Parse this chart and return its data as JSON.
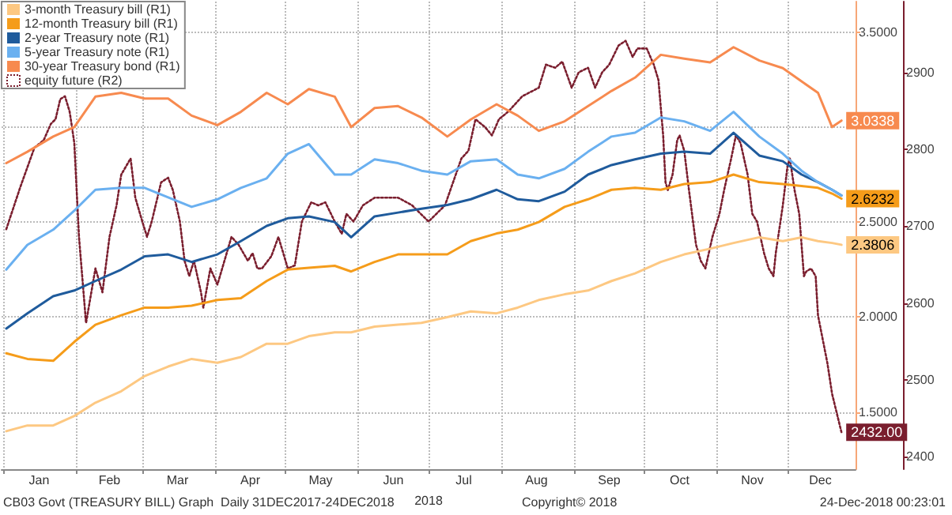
{
  "chart_data": {
    "type": "line",
    "xlabel": "2018",
    "legend": "top left",
    "grid": true,
    "marker": "none",
    "annotations": [
      "CB03 Govt (TREASURY BILL) Graph  Daily 31DEC2017-24DEC2018",
      "Copyright© 2018",
      "24-Dec-2018 00:23:01"
    ],
    "xlim": [
      "2017-12-31",
      "2018-12-30"
    ],
    "xticks": [
      {
        "value": "2018-01-01",
        "label": null
      },
      {
        "value": "2018-01-16",
        "label": "Jan"
      },
      {
        "value": "2018-02-01",
        "label": null
      },
      {
        "value": "2018-02-15",
        "label": "Feb"
      },
      {
        "value": "2018-03-01",
        "label": null
      },
      {
        "value": "2018-03-16",
        "label": "Mar"
      },
      {
        "value": "2018-04-01",
        "label": null
      },
      {
        "value": "2018-04-16",
        "label": "Apr"
      },
      {
        "value": "2018-05-01",
        "label": null
      },
      {
        "value": "2018-05-16",
        "label": "May"
      },
      {
        "value": "2018-06-01",
        "label": null
      },
      {
        "value": "2018-06-16",
        "label": "Jun"
      },
      {
        "value": "2018-07-01",
        "label": null
      },
      {
        "value": "2018-07-16",
        "label": "Jul"
      },
      {
        "value": "2018-08-01",
        "label": null
      },
      {
        "value": "2018-08-16",
        "label": "Aug"
      },
      {
        "value": "2018-09-01",
        "label": null
      },
      {
        "value": "2018-09-16",
        "label": "Sep"
      },
      {
        "value": "2018-10-01",
        "label": null
      },
      {
        "value": "2018-10-16",
        "label": "Oct"
      },
      {
        "value": "2018-11-01",
        "label": null
      },
      {
        "value": "2018-11-16",
        "label": "Nov"
      },
      {
        "value": "2018-12-01",
        "label": null
      },
      {
        "value": "2018-12-15",
        "label": "Dec"
      }
    ],
    "ylim": [
      1.2,
      3.66
    ],
    "yticks": [
      {
        "value": 1.5,
        "label": "1.5000"
      },
      {
        "value": 2,
        "label": "2.0000"
      },
      {
        "value": 2.5,
        "label": "2.5000"
      },
      {
        "value": 3,
        "label": null
      },
      {
        "value": 3.5,
        "label": "3.5000"
      }
    ],
    "y2lim": [
      2384,
      2992
    ],
    "y2ticks": [
      2400,
      2500,
      2600,
      2700,
      2800,
      2900
    ],
    "x": [
      "2018-01-02",
      "2018-01-11",
      "2018-01-22",
      "2018-01-31",
      "2018-02-09",
      "2018-02-20",
      "2018-03-02",
      "2018-03-12",
      "2018-03-22",
      "2018-04-02",
      "2018-04-12",
      "2018-04-23",
      "2018-05-02",
      "2018-05-11",
      "2018-05-22",
      "2018-05-29",
      "2018-06-08",
      "2018-06-18",
      "2018-06-28",
      "2018-07-09",
      "2018-07-19",
      "2018-07-30",
      "2018-08-08",
      "2018-08-17",
      "2018-08-28",
      "2018-09-07",
      "2018-09-17",
      "2018-09-27",
      "2018-10-08",
      "2018-10-18",
      "2018-10-29",
      "2018-11-08",
      "2018-11-19",
      "2018-11-29",
      "2018-12-07",
      "2018-12-14",
      "2018-12-20",
      "2018-12-24"
    ],
    "series": [
      {
        "name": "3-month Treasury bill (R1)",
        "color": "#fdc882",
        "values": [
          1.4,
          1.43,
          1.43,
          1.48,
          1.55,
          1.61,
          1.69,
          1.74,
          1.78,
          1.76,
          1.79,
          1.86,
          1.86,
          1.9,
          1.92,
          1.92,
          1.95,
          1.96,
          1.97,
          2.0,
          2.03,
          2.02,
          2.05,
          2.09,
          2.12,
          2.14,
          2.19,
          2.23,
          2.29,
          2.33,
          2.36,
          2.39,
          2.42,
          2.4,
          2.42,
          2.4,
          2.39,
          2.3806
        ],
        "value_labels": [
          null,
          null,
          null,
          null,
          null,
          null,
          null,
          null,
          null,
          null,
          null,
          null,
          null,
          null,
          null,
          null,
          null,
          null,
          null,
          null,
          null,
          null,
          null,
          null,
          null,
          null,
          null,
          null,
          null,
          null,
          null,
          null,
          null,
          null,
          null,
          null,
          null,
          "2.3806"
        ]
      },
      {
        "name": "12-month Treasury bill (R1)",
        "color": "#f59c1a",
        "values": [
          1.81,
          1.78,
          1.77,
          1.87,
          1.96,
          2.01,
          2.05,
          2.05,
          2.06,
          2.09,
          2.1,
          2.19,
          2.25,
          2.26,
          2.27,
          2.24,
          2.29,
          2.33,
          2.33,
          2.33,
          2.4,
          2.44,
          2.46,
          2.5,
          2.58,
          2.62,
          2.67,
          2.68,
          2.67,
          2.7,
          2.71,
          2.75,
          2.71,
          2.7,
          2.69,
          2.68,
          2.65,
          2.6232
        ],
        "value_labels": [
          null,
          null,
          null,
          null,
          null,
          null,
          null,
          null,
          null,
          null,
          null,
          null,
          null,
          null,
          null,
          null,
          null,
          null,
          null,
          null,
          null,
          null,
          null,
          null,
          null,
          null,
          null,
          null,
          null,
          null,
          null,
          null,
          null,
          null,
          null,
          null,
          null,
          "2.6232"
        ]
      },
      {
        "name": "2-year Treasury note (R1)",
        "color": "#1f5b9c",
        "values": [
          1.94,
          2.02,
          2.11,
          2.14,
          2.19,
          2.25,
          2.32,
          2.33,
          2.29,
          2.33,
          2.4,
          2.48,
          2.52,
          2.53,
          2.5,
          2.42,
          2.53,
          2.55,
          2.57,
          2.59,
          2.62,
          2.67,
          2.62,
          2.61,
          2.66,
          2.75,
          2.8,
          2.83,
          2.86,
          2.87,
          2.86,
          2.97,
          2.85,
          2.82,
          2.75,
          2.71,
          2.67,
          2.64
        ]
      },
      {
        "name": "5-year Treasury note (R1)",
        "color": "#6ab0f0",
        "values": [
          2.25,
          2.38,
          2.46,
          2.56,
          2.67,
          2.68,
          2.68,
          2.63,
          2.58,
          2.62,
          2.68,
          2.73,
          2.86,
          2.91,
          2.75,
          2.75,
          2.83,
          2.81,
          2.77,
          2.75,
          2.82,
          2.83,
          2.75,
          2.73,
          2.78,
          2.87,
          2.95,
          2.97,
          3.05,
          3.03,
          2.98,
          3.08,
          2.95,
          2.86,
          2.77,
          2.71,
          2.67,
          2.64
        ]
      },
      {
        "name": "30-year Treasury bond (R1)",
        "color": "#f78a4f",
        "values": [
          2.81,
          2.87,
          2.95,
          3.0,
          3.16,
          3.18,
          3.15,
          3.15,
          3.06,
          3.01,
          3.08,
          3.18,
          3.12,
          3.2,
          3.16,
          3.0,
          3.1,
          3.11,
          3.05,
          2.95,
          3.04,
          3.12,
          3.06,
          2.98,
          3.03,
          3.11,
          3.19,
          3.26,
          3.38,
          3.36,
          3.34,
          3.42,
          3.35,
          3.31,
          3.24,
          3.18,
          3.0,
          3.0338
        ],
        "value_labels": [
          null,
          null,
          null,
          null,
          null,
          null,
          null,
          null,
          null,
          null,
          null,
          null,
          null,
          null,
          null,
          null,
          null,
          null,
          null,
          null,
          null,
          null,
          null,
          null,
          null,
          null,
          null,
          null,
          null,
          null,
          null,
          null,
          null,
          null,
          null,
          null,
          null,
          "3.0338"
        ]
      },
      {
        "name": "equity future (R2)",
        "color": "#7a1e2e",
        "axis": "y2",
        "line_style": "dotted",
        "x": [
          "2018-01-02",
          "2018-01-08",
          "2018-01-14",
          "2018-01-18",
          "2018-01-21",
          "2018-01-23",
          "2018-01-25",
          "2018-01-27",
          "2018-01-29",
          "2018-01-30",
          "2018-01-31",
          "2018-02-02",
          "2018-02-05",
          "2018-02-09",
          "2018-02-12",
          "2018-02-15",
          "2018-02-18",
          "2018-02-20",
          "2018-02-24",
          "2018-02-26",
          "2018-03-01",
          "2018-03-03",
          "2018-03-05",
          "2018-03-09",
          "2018-03-12",
          "2018-03-14",
          "2018-03-17",
          "2018-03-19",
          "2018-03-21",
          "2018-03-23",
          "2018-03-26",
          "2018-03-27",
          "2018-03-30",
          "2018-04-02",
          "2018-04-05",
          "2018-04-08",
          "2018-04-11",
          "2018-04-15",
          "2018-04-17",
          "2018-04-19",
          "2018-04-21",
          "2018-04-25",
          "2018-04-28",
          "2018-05-02",
          "2018-05-05",
          "2018-05-08",
          "2018-05-12",
          "2018-05-15",
          "2018-05-18",
          "2018-05-22",
          "2018-05-25",
          "2018-05-27",
          "2018-05-30",
          "2018-06-03",
          "2018-06-08",
          "2018-06-11",
          "2018-06-18",
          "2018-06-24",
          "2018-07-01",
          "2018-07-08",
          "2018-07-15",
          "2018-07-18",
          "2018-07-21",
          "2018-07-25",
          "2018-07-28",
          "2018-07-31",
          "2018-08-04",
          "2018-08-10",
          "2018-08-17",
          "2018-08-20",
          "2018-08-24",
          "2018-08-27",
          "2018-08-31",
          "2018-09-03",
          "2018-09-07",
          "2018-09-10",
          "2018-09-13",
          "2018-09-16",
          "2018-09-20",
          "2018-09-23",
          "2018-09-26",
          "2018-09-28",
          "2018-10-02",
          "2018-10-05",
          "2018-10-07",
          "2018-10-09",
          "2018-10-10",
          "2018-10-11",
          "2018-10-13",
          "2018-10-15",
          "2018-10-16",
          "2018-10-18",
          "2018-10-20",
          "2018-10-23",
          "2018-10-25",
          "2018-10-27",
          "2018-10-30",
          "2018-11-02",
          "2018-11-04",
          "2018-11-07",
          "2018-11-09",
          "2018-11-11",
          "2018-11-14",
          "2018-11-16",
          "2018-11-18",
          "2018-11-21",
          "2018-11-23",
          "2018-11-25",
          "2018-11-26",
          "2018-11-28",
          "2018-11-29",
          "2018-12-01",
          "2018-12-02",
          "2018-12-04",
          "2018-12-06",
          "2018-12-08",
          "2018-12-09",
          "2018-12-11",
          "2018-12-13",
          "2018-12-14",
          "2018-12-16",
          "2018-12-18",
          "2018-12-20",
          "2018-12-22",
          "2018-12-24"
        ],
        "values": [
          2696,
          2751,
          2802,
          2812,
          2833,
          2839,
          2865,
          2869,
          2849,
          2829,
          2808,
          2686,
          2574,
          2645,
          2614,
          2686,
          2727,
          2767,
          2788,
          2737,
          2706,
          2686,
          2706,
          2757,
          2763,
          2747,
          2706,
          2655,
          2635,
          2655,
          2614,
          2594,
          2645,
          2624,
          2655,
          2686,
          2676,
          2655,
          2665,
          2645,
          2645,
          2661,
          2686,
          2645,
          2649,
          2706,
          2731,
          2727,
          2731,
          2706,
          2690,
          2716,
          2706,
          2727,
          2737,
          2737,
          2737,
          2727,
          2706,
          2727,
          2788,
          2798,
          2839,
          2829,
          2818,
          2839,
          2849,
          2869,
          2880,
          2910,
          2906,
          2914,
          2880,
          2900,
          2906,
          2880,
          2900,
          2910,
          2935,
          2941,
          2920,
          2931,
          2931,
          2910,
          2890,
          2818,
          2757,
          2747,
          2767,
          2812,
          2818,
          2798,
          2747,
          2676,
          2655,
          2645,
          2686,
          2716,
          2747,
          2788,
          2818,
          2808,
          2767,
          2716,
          2706,
          2665,
          2645,
          2635,
          2665,
          2706,
          2727,
          2778,
          2788,
          2747,
          2716,
          2635,
          2641,
          2645,
          2635,
          2584,
          2553,
          2522,
          2482,
          2457,
          2432
        ],
        "value_labels": [
          null,
          null,
          null,
          null,
          null,
          null,
          null,
          null,
          null,
          null,
          null,
          null,
          null,
          null,
          null,
          null,
          null,
          null,
          null,
          null,
          null,
          null,
          null,
          null,
          null,
          null,
          null,
          null,
          null,
          null,
          null,
          null,
          null,
          null,
          null,
          null,
          null,
          null,
          null,
          null,
          null,
          null,
          null,
          null,
          null,
          null,
          null,
          null,
          null,
          null,
          null,
          null,
          null,
          null,
          null,
          null,
          null,
          null,
          null,
          null,
          null,
          null,
          null,
          null,
          null,
          null,
          null,
          null,
          null,
          null,
          null,
          null,
          null,
          null,
          null,
          null,
          null,
          null,
          null,
          null,
          null,
          null,
          null,
          null,
          null,
          null,
          null,
          null,
          null,
          null,
          null,
          null,
          null,
          null,
          null,
          null,
          null,
          null,
          null,
          null,
          null,
          null,
          null,
          null,
          null,
          null,
          null,
          null,
          null,
          null,
          null,
          null,
          null,
          null,
          null,
          null,
          null,
          null,
          null,
          null,
          null,
          null,
          null,
          null,
          "2432.00"
        ]
      }
    ]
  }
}
